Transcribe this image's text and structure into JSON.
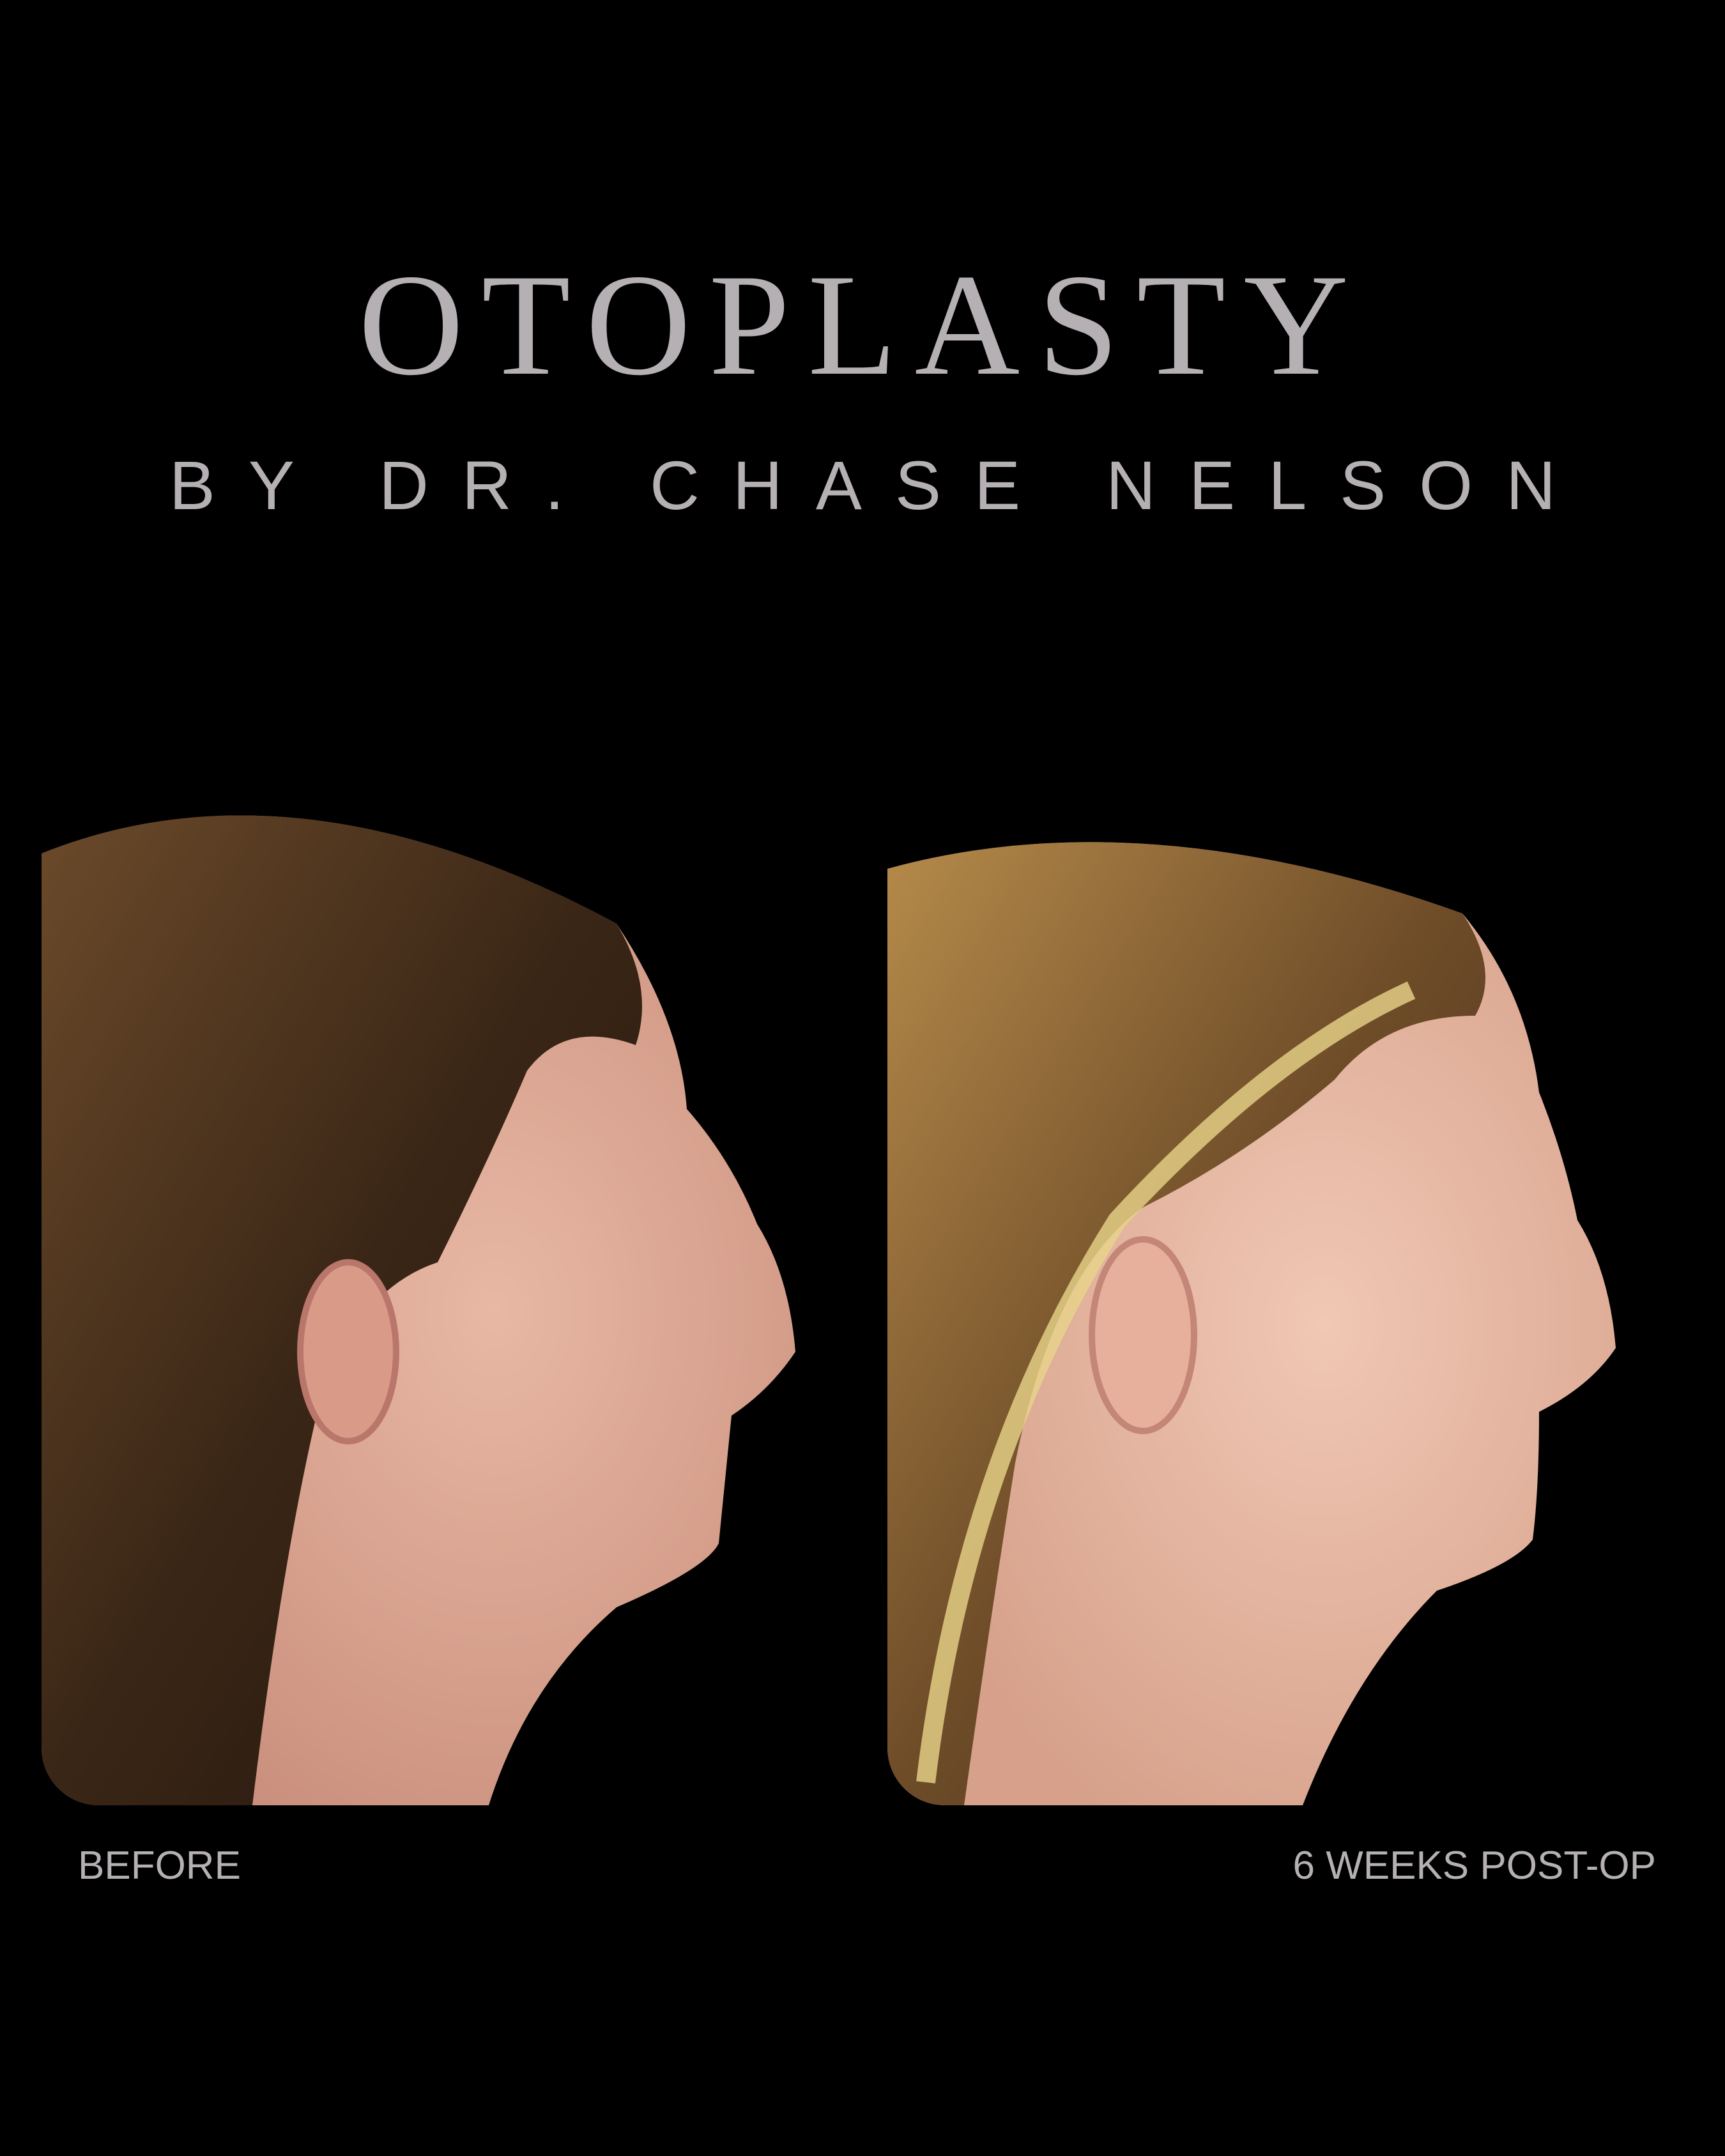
{
  "header": {
    "title": "OTOPLASTY",
    "subtitle": "BY DR. CHASE NELSON"
  },
  "photos": [
    {
      "label": "BEFORE"
    },
    {
      "label": "6 WEEKS POST-OP"
    }
  ],
  "colors": {
    "background": "#000000",
    "text": "#b5b0b3"
  }
}
